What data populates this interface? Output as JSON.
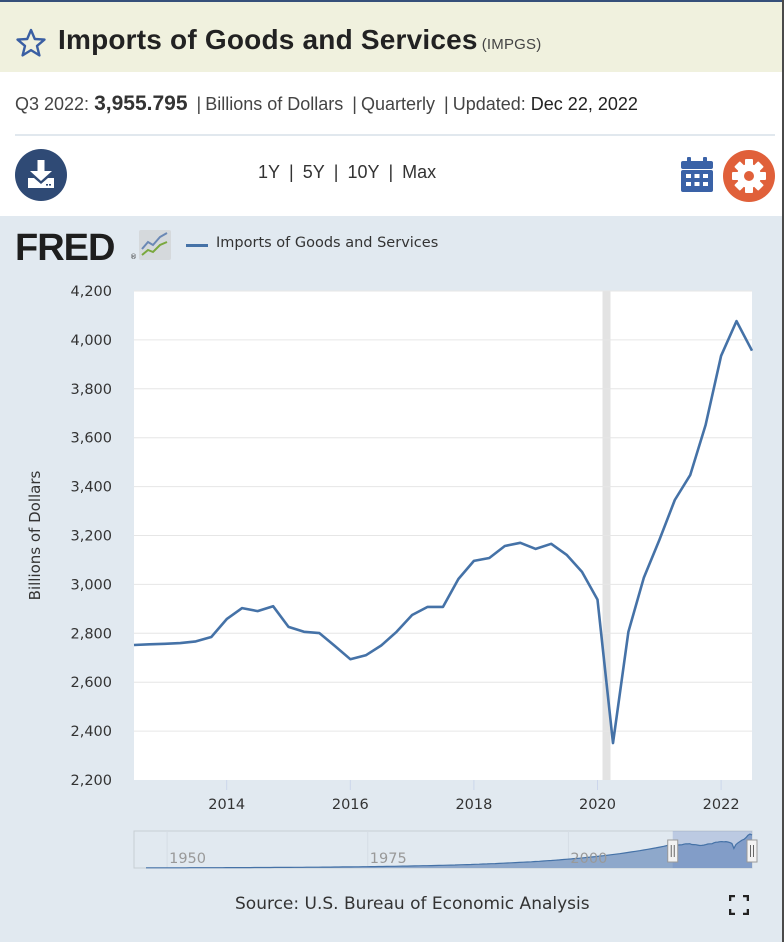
{
  "header": {
    "title": "Imports of Goods and Services",
    "series_id": "(IMPGS)",
    "star_icon": "star-outline-icon"
  },
  "meta": {
    "period": "Q3 2022:",
    "value": "3,955.795",
    "units": "Billions of Dollars",
    "frequency": "Quarterly",
    "updated_label": "Updated:",
    "updated_date": "Dec 22, 2022",
    "separator": "|"
  },
  "toolbar": {
    "download_icon": "download-icon",
    "ranges": [
      "1Y",
      "5Y",
      "10Y",
      "Max"
    ],
    "calendar_icon": "calendar-icon",
    "settings_icon": "gear-icon"
  },
  "brand": {
    "logo_text": "FRED",
    "registered": "®"
  },
  "footer": {
    "source": "Source: U.S. Bureau of Economic Analysis",
    "fullscreen_icon": "fullscreen-icon"
  },
  "colors": {
    "series": "#4572a7",
    "header_bg": "#f0f1de",
    "chart_bg": "#e1e9f0",
    "download_btn": "#2f4a75",
    "settings_btn": "#e0603a",
    "calendar": "#3a62a7",
    "recession": "#e3e3e3"
  },
  "chart_data": {
    "type": "line",
    "title": "Imports of Goods and Services",
    "legend": [
      "Imports of Goods and Services"
    ],
    "legend_position": "top-left",
    "xlabel": "",
    "ylabel": "Billions of Dollars",
    "ylim": [
      2200,
      4200
    ],
    "yticks": [
      2200,
      2400,
      2600,
      2800,
      3000,
      3200,
      3400,
      3600,
      3800,
      4000,
      4200
    ],
    "ytick_labels": [
      "2,200",
      "2,400",
      "2,600",
      "2,800",
      "3,000",
      "3,200",
      "3,400",
      "3,600",
      "3,800",
      "4,000",
      "4,200"
    ],
    "xlim": [
      2012.5,
      2022.5
    ],
    "xticks": [
      2014,
      2016,
      2018,
      2020,
      2022
    ],
    "xtick_labels": [
      "2014",
      "2016",
      "2018",
      "2020",
      "2022"
    ],
    "grid": true,
    "recession_shading": [
      [
        2020.0,
        2020.25
      ]
    ],
    "series": [
      {
        "name": "Imports of Goods and Services",
        "x": [
          "2012-Q3",
          "2012-Q4",
          "2013-Q1",
          "2013-Q2",
          "2013-Q3",
          "2013-Q4",
          "2014-Q1",
          "2014-Q2",
          "2014-Q3",
          "2014-Q4",
          "2015-Q1",
          "2015-Q2",
          "2015-Q3",
          "2015-Q4",
          "2016-Q1",
          "2016-Q2",
          "2016-Q3",
          "2016-Q4",
          "2017-Q1",
          "2017-Q2",
          "2017-Q3",
          "2017-Q4",
          "2018-Q1",
          "2018-Q2",
          "2018-Q3",
          "2018-Q4",
          "2019-Q1",
          "2019-Q2",
          "2019-Q3",
          "2019-Q4",
          "2020-Q1",
          "2020-Q2",
          "2020-Q3",
          "2020-Q4",
          "2021-Q1",
          "2021-Q2",
          "2021-Q3",
          "2021-Q4",
          "2022-Q1",
          "2022-Q2",
          "2022-Q3"
        ],
        "t": [
          2012.5,
          2012.75,
          2013.0,
          2013.25,
          2013.5,
          2013.75,
          2014.0,
          2014.25,
          2014.5,
          2014.75,
          2015.0,
          2015.25,
          2015.5,
          2015.75,
          2016.0,
          2016.25,
          2016.5,
          2016.75,
          2017.0,
          2017.25,
          2017.5,
          2017.75,
          2018.0,
          2018.25,
          2018.5,
          2018.75,
          2019.0,
          2019.25,
          2019.5,
          2019.75,
          2020.0,
          2020.25,
          2020.5,
          2020.75,
          2021.0,
          2021.25,
          2021.5,
          2021.75,
          2022.0,
          2022.25,
          2022.5
        ],
        "values": [
          2752,
          2755,
          2757,
          2760,
          2767,
          2785,
          2858,
          2903,
          2891,
          2911,
          2826,
          2806,
          2801,
          2748,
          2694,
          2710,
          2750,
          2806,
          2875,
          2908,
          2908,
          3022,
          3096,
          3108,
          3157,
          3170,
          3145,
          3166,
          3121,
          3051,
          2938,
          2351,
          2806,
          3027,
          3181,
          3345,
          3447,
          3652,
          3935,
          4077,
          3956
        ]
      }
    ],
    "navigator": {
      "xtick_labels": [
        "1950",
        "1975",
        "2000"
      ],
      "selected_range": [
        "2012-Q3",
        "2022-Q3"
      ]
    }
  }
}
